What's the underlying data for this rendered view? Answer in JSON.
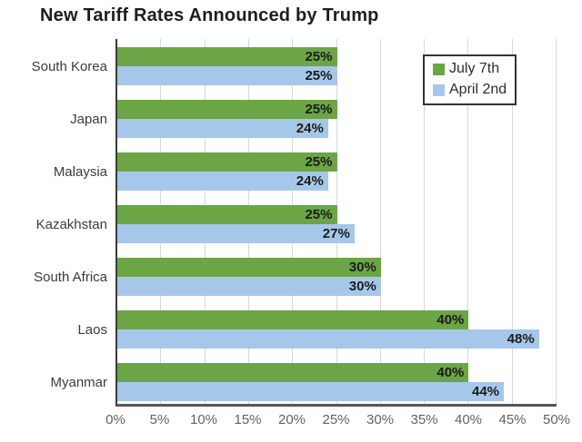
{
  "title": "New Tariff Rates Announced by Trump",
  "legend": {
    "items": [
      {
        "label": "July 7th",
        "color": "#6ba546"
      },
      {
        "label": "April 2nd",
        "color": "#a5c8ea"
      }
    ]
  },
  "chart_data": {
    "type": "bar",
    "orientation": "horizontal",
    "title": "New Tariff Rates Announced by Trump",
    "categories": [
      "South Korea",
      "Japan",
      "Malaysia",
      "Kazakhstan",
      "South Africa",
      "Laos",
      "Myanmar"
    ],
    "series": [
      {
        "name": "July 7th",
        "color": "#6ba546",
        "values": [
          25,
          25,
          25,
          25,
          30,
          40,
          40
        ],
        "labels": [
          "25%",
          "25%",
          "25%",
          "25%",
          "30%",
          "40%",
          "40%"
        ]
      },
      {
        "name": "April 2nd",
        "color": "#a5c8ea",
        "values": [
          25,
          24,
          24,
          27,
          30,
          48,
          44
        ],
        "labels": [
          "25%",
          "24%",
          "24%",
          "27%",
          "30%",
          "48%",
          "44%"
        ]
      }
    ],
    "xlim": [
      0,
      50
    ],
    "x_ticks": [
      "0%",
      "5%",
      "10%",
      "15%",
      "20%",
      "25%",
      "30%",
      "35%",
      "40%",
      "45%",
      "50%"
    ],
    "grid": true,
    "legend_position": "top-right",
    "colors": {
      "gridline": "#d8d8d8",
      "axis_left": "#3b3b3b",
      "axis_bottom": "#555555",
      "bar_label_text": "#1c1c1c",
      "category_text": "#3c3c3c",
      "tick_text": "#636363"
    }
  }
}
